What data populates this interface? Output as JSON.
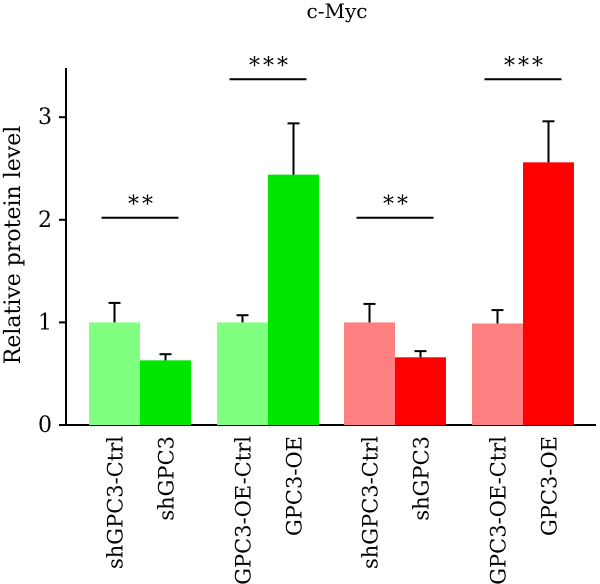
{
  "chart_data": {
    "type": "bar",
    "title": "c-Myc",
    "ylabel": "Relative protein level",
    "xlabel": "",
    "ylim": [
      0,
      3.4
    ],
    "yticks": [
      0,
      1,
      2,
      3
    ],
    "grid": false,
    "categories": [
      "shGPC3-Ctrl",
      "shGPC3",
      "GPC3-OE-Ctrl",
      "GPC3-OE",
      "shGPC3-Ctrl",
      "shGPC3",
      "GPC3-OE-Ctrl",
      "GPC3-OE"
    ],
    "values": [
      1.0,
      0.63,
      1.0,
      2.44,
      1.0,
      0.66,
      0.99,
      2.56
    ],
    "errors": [
      0.19,
      0.06,
      0.07,
      0.5,
      0.18,
      0.06,
      0.13,
      0.4
    ],
    "colors": [
      "#80ff80",
      "#00e600",
      "#80ff80",
      "#00e600",
      "#ff8080",
      "#ff0000",
      "#ff8080",
      "#ff0000"
    ],
    "significance": [
      {
        "pair": [
          0,
          1
        ],
        "label": "**",
        "y": 2.02
      },
      {
        "pair": [
          2,
          3
        ],
        "label": "***",
        "y": 3.37
      },
      {
        "pair": [
          4,
          5
        ],
        "label": "**",
        "y": 2.02
      },
      {
        "pair": [
          6,
          7
        ],
        "label": "***",
        "y": 3.37
      }
    ]
  }
}
